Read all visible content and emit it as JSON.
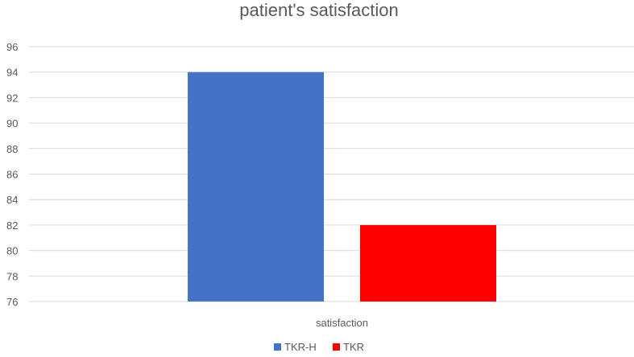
{
  "chart_data": {
    "type": "bar",
    "title": "patient's satisfaction",
    "categories": [
      "satisfaction"
    ],
    "series": [
      {
        "name": "TKR-H",
        "values": [
          94
        ],
        "color": "#4472C4"
      },
      {
        "name": "TKR",
        "values": [
          82
        ],
        "color": "#FF0000"
      }
    ],
    "ylim": [
      76,
      96
    ],
    "yticks": [
      76,
      78,
      80,
      82,
      84,
      86,
      88,
      90,
      92,
      94,
      96
    ],
    "grid": true,
    "legend": "bottom"
  }
}
